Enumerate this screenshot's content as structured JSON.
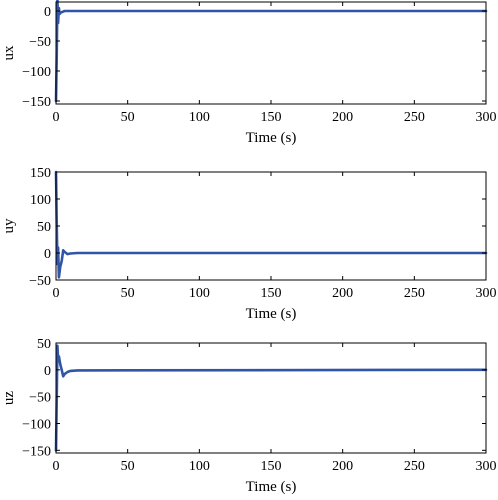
{
  "colors": {
    "series": "#3155a6",
    "axes": "#000000",
    "background": "#ffffff"
  },
  "chart_data": [
    {
      "type": "line",
      "xlabel": "Time (s)",
      "ylabel": "ux",
      "xlim": [
        0,
        300
      ],
      "ylim": [
        -155,
        15
      ],
      "xticks": [
        0,
        50,
        100,
        150,
        200,
        250,
        300
      ],
      "yticks": [
        0,
        -50,
        -100,
        -150
      ],
      "grid": false,
      "series": [
        {
          "x": [
            0,
            0.5,
            1,
            1.5,
            2,
            2.5,
            3,
            4,
            5,
            6,
            8,
            10,
            15,
            300
          ],
          "y": [
            -150,
            -80,
            20,
            -20,
            5,
            -5,
            -3,
            -2,
            -1,
            0,
            0,
            0,
            0,
            0
          ]
        }
      ]
    },
    {
      "type": "line",
      "xlabel": "Time (s)",
      "ylabel": "uy",
      "xlim": [
        0,
        300
      ],
      "ylim": [
        -50,
        150
      ],
      "xticks": [
        0,
        50,
        100,
        150,
        200,
        250,
        300
      ],
      "yticks": [
        150,
        100,
        50,
        0,
        -50
      ],
      "grid": false,
      "series": [
        {
          "x": [
            0,
            0.5,
            1,
            1.5,
            2,
            3,
            4,
            5,
            6,
            8,
            10,
            15,
            300
          ],
          "y": [
            150,
            60,
            -20,
            10,
            -45,
            -25,
            -15,
            5,
            2,
            -2,
            -1,
            0,
            0
          ]
        }
      ]
    },
    {
      "type": "line",
      "xlabel": "Time (s)",
      "ylabel": "uz",
      "xlim": [
        0,
        300
      ],
      "ylim": [
        -155,
        50
      ],
      "xticks": [
        0,
        50,
        100,
        150,
        200,
        250,
        300
      ],
      "yticks": [
        50,
        0,
        -50,
        -100,
        -150
      ],
      "grid": false,
      "series": [
        {
          "x": [
            0,
            0.5,
            1,
            1.5,
            2,
            3,
            4,
            5,
            6,
            8,
            10,
            15,
            300
          ],
          "y": [
            -150,
            -60,
            45,
            20,
            25,
            10,
            0,
            -12,
            -8,
            -4,
            -2,
            -1,
            0
          ]
        }
      ]
    }
  ]
}
